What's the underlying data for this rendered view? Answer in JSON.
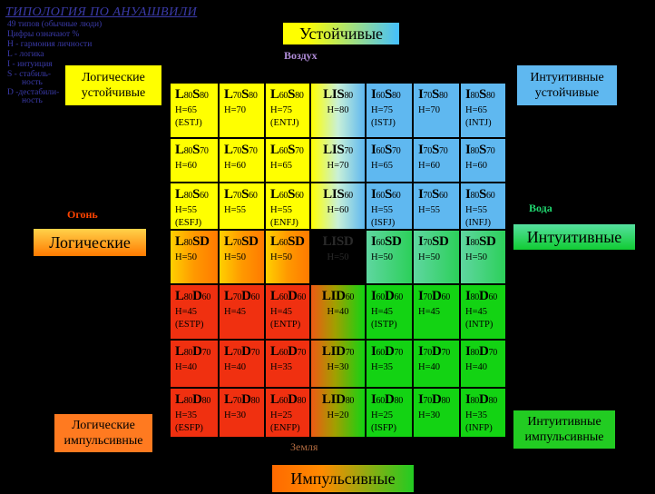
{
  "legend": {
    "title": "ТИПОЛОГИЯ ПО АНУАШВИЛИ",
    "lines": [
      "49 типов (обычные люди)",
      "Цифры означают %",
      "H - гармония личности",
      "L - логика",
      "I - интуиция",
      "S - стабиль-",
      "ность",
      "D -дестабили-",
      "ность"
    ]
  },
  "headings": {
    "top": "Устойчивые",
    "left": "Логические",
    "right": "Интуитивные",
    "bottom": "Импульсивные",
    "logical_stable": "Логические устойчивые",
    "intuitive_stable": "Интуитивные устойчивые",
    "logical_impulsive": "Логические импульсивные",
    "intuitive_impulsive": "Интуитивные импульсивные"
  },
  "elements": {
    "air": "Воздух",
    "fire": "Огонь",
    "water": "Вода",
    "earth": "Земля"
  },
  "colors": {
    "yellow": "#ffff00",
    "blue": "#5fb8f0",
    "green": "#13d313",
    "red": "#f03010",
    "orange": "#ff9900",
    "black": "#000000"
  },
  "grid": [
    [
      {
        "code": [
          "L",
          "80",
          "S",
          "80"
        ],
        "h": "H=65",
        "mbti": "(ESTJ)"
      },
      {
        "code": [
          "L",
          "70",
          "S",
          "80"
        ],
        "h": "H=70",
        "mbti": ""
      },
      {
        "code": [
          "L",
          "60",
          "S",
          "80"
        ],
        "h": "H=75",
        "mbti": "(ENTJ)"
      },
      {
        "code": [
          "LIS",
          "80",
          ""
        ],
        "h": "H=80",
        "mbti": ""
      },
      {
        "code": [
          "I",
          "60",
          "S",
          "80"
        ],
        "h": "H=75",
        "mbti": "(ISTJ)"
      },
      {
        "code": [
          "I",
          "70",
          "S",
          "80"
        ],
        "h": "H=70",
        "mbti": ""
      },
      {
        "code": [
          "I",
          "80",
          "S",
          "80"
        ],
        "h": "H=65",
        "mbti": "(INTJ)"
      }
    ],
    [
      {
        "code": [
          "L",
          "80",
          "S",
          "70"
        ],
        "h": "H=60",
        "mbti": ""
      },
      {
        "code": [
          "L",
          "70",
          "S",
          "70"
        ],
        "h": "H=60",
        "mbti": ""
      },
      {
        "code": [
          "L",
          "60",
          "S",
          "70"
        ],
        "h": "H=65",
        "mbti": ""
      },
      {
        "code": [
          "LIS",
          "70",
          ""
        ],
        "h": "H=70",
        "mbti": ""
      },
      {
        "code": [
          "I",
          "60",
          "S",
          "70"
        ],
        "h": "H=65",
        "mbti": ""
      },
      {
        "code": [
          "I",
          "70",
          "S",
          "70"
        ],
        "h": "H=60",
        "mbti": ""
      },
      {
        "code": [
          "I",
          "80",
          "S",
          "70"
        ],
        "h": "H=60",
        "mbti": ""
      }
    ],
    [
      {
        "code": [
          "L",
          "80",
          "S",
          "60"
        ],
        "h": "H=55",
        "mbti": "(ESFJ)"
      },
      {
        "code": [
          "L",
          "70",
          "S",
          "60"
        ],
        "h": "H=55",
        "mbti": ""
      },
      {
        "code": [
          "L",
          "60",
          "S",
          "60"
        ],
        "h": "H=55",
        "mbti": "(ENFJ)"
      },
      {
        "code": [
          "LIS",
          "60",
          ""
        ],
        "h": "H=60",
        "mbti": ""
      },
      {
        "code": [
          "I",
          "60",
          "S",
          "60"
        ],
        "h": "H=55",
        "mbti": "(ISFJ)"
      },
      {
        "code": [
          "I",
          "70",
          "S",
          "60"
        ],
        "h": "H=55",
        "mbti": ""
      },
      {
        "code": [
          "I",
          "80",
          "S",
          "60"
        ],
        "h": "H=55",
        "mbti": "(INFJ)"
      }
    ],
    [
      {
        "code": [
          "L",
          "80",
          "SD",
          ""
        ],
        "h": "H=50",
        "mbti": ""
      },
      {
        "code": [
          "L",
          "70",
          "SD",
          ""
        ],
        "h": "H=50",
        "mbti": ""
      },
      {
        "code": [
          "L",
          "60",
          "SD",
          ""
        ],
        "h": "H=50",
        "mbti": ""
      },
      {
        "code": [
          "LISD",
          "",
          ""
        ],
        "h": "H=50",
        "mbti": ""
      },
      {
        "code": [
          "I",
          "60",
          "SD",
          ""
        ],
        "h": "H=50",
        "mbti": ""
      },
      {
        "code": [
          "I",
          "70",
          "SD",
          ""
        ],
        "h": "H=50",
        "mbti": ""
      },
      {
        "code": [
          "I",
          "80",
          "SD",
          ""
        ],
        "h": "H=50",
        "mbti": ""
      }
    ],
    [
      {
        "code": [
          "L",
          "80",
          "D",
          "60"
        ],
        "h": "H=45",
        "mbti": "(ESTP)"
      },
      {
        "code": [
          "L",
          "70",
          "D",
          "60"
        ],
        "h": "H=45",
        "mbti": ""
      },
      {
        "code": [
          "L",
          "60",
          "D",
          "60"
        ],
        "h": "H=45",
        "mbti": "(ENTP)"
      },
      {
        "code": [
          "LID",
          "60",
          ""
        ],
        "h": "H=40",
        "mbti": ""
      },
      {
        "code": [
          "I",
          "60",
          "D",
          "60"
        ],
        "h": "H=45",
        "mbti": "(ISTP)"
      },
      {
        "code": [
          "I",
          "70",
          "D",
          "60"
        ],
        "h": "H=45",
        "mbti": ""
      },
      {
        "code": [
          "I",
          "80",
          "D",
          "60"
        ],
        "h": "H=45",
        "mbti": "(INTP)"
      }
    ],
    [
      {
        "code": [
          "L",
          "80",
          "D",
          "70"
        ],
        "h": "H=40",
        "mbti": ""
      },
      {
        "code": [
          "L",
          "70",
          "D",
          "70"
        ],
        "h": "H=40",
        "mbti": ""
      },
      {
        "code": [
          "L",
          "60",
          "D",
          "70"
        ],
        "h": "H=35",
        "mbti": ""
      },
      {
        "code": [
          "LID",
          "70",
          ""
        ],
        "h": "H=30",
        "mbti": ""
      },
      {
        "code": [
          "I",
          "60",
          "D",
          "70"
        ],
        "h": "H=35",
        "mbti": ""
      },
      {
        "code": [
          "I",
          "70",
          "D",
          "70"
        ],
        "h": "H=40",
        "mbti": ""
      },
      {
        "code": [
          "I",
          "80",
          "D",
          "70"
        ],
        "h": "H=40",
        "mbti": ""
      }
    ],
    [
      {
        "code": [
          "L",
          "80",
          "D",
          "80"
        ],
        "h": "H=35",
        "mbti": "(ESFP)"
      },
      {
        "code": [
          "L",
          "70",
          "D",
          "80"
        ],
        "h": "H=30",
        "mbti": ""
      },
      {
        "code": [
          "L",
          "60",
          "D",
          "80"
        ],
        "h": "H=25",
        "mbti": "(ENFP)"
      },
      {
        "code": [
          "LID",
          "80",
          ""
        ],
        "h": "H=20",
        "mbti": ""
      },
      {
        "code": [
          "I",
          "60",
          "D",
          "80"
        ],
        "h": "H=25",
        "mbti": "(ISFP)"
      },
      {
        "code": [
          "I",
          "70",
          "D",
          "80"
        ],
        "h": "H=30",
        "mbti": ""
      },
      {
        "code": [
          "I",
          "80",
          "D",
          "80"
        ],
        "h": "H=35",
        "mbti": "(INFP)"
      }
    ]
  ]
}
